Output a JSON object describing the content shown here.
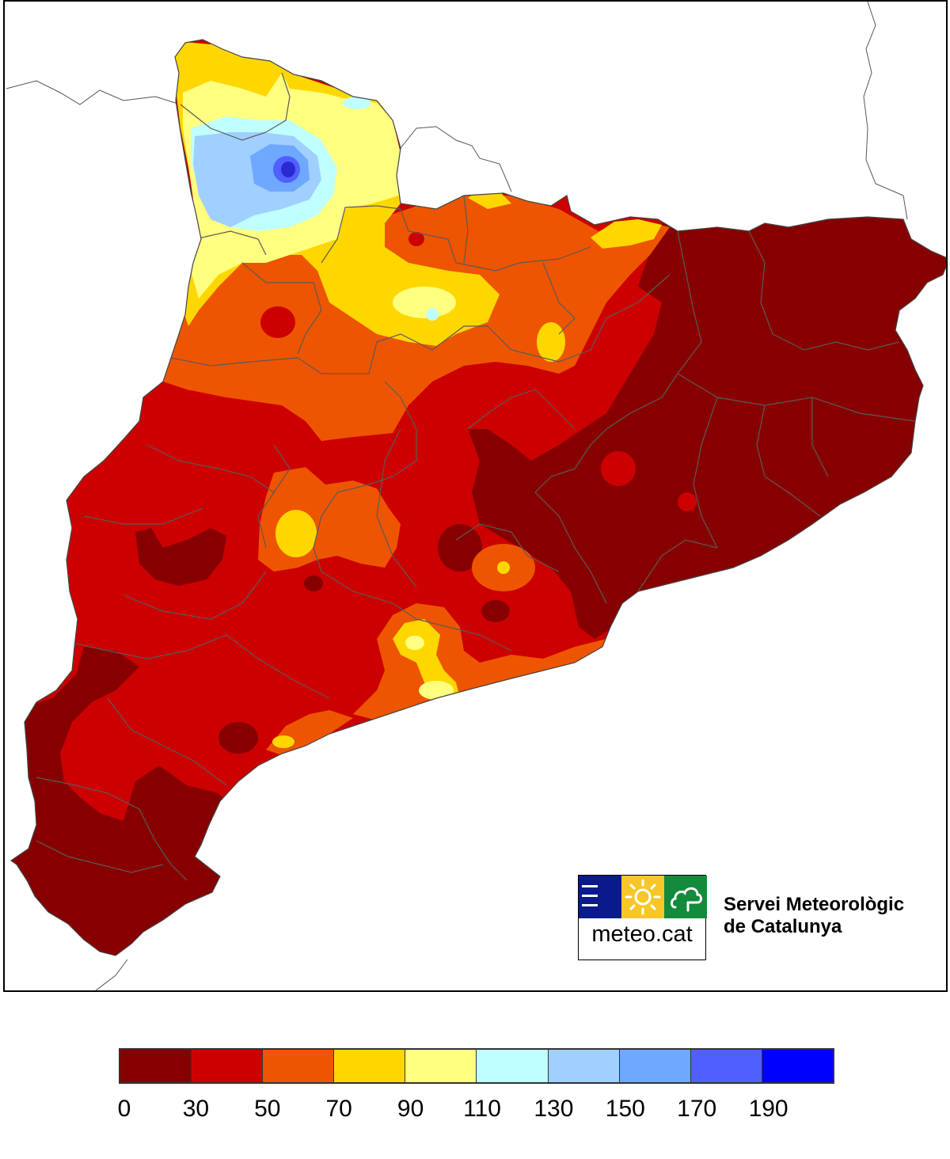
{
  "organization": {
    "line1": "Servei Meteorològic",
    "line2": "de Catalunya",
    "logo_text": "meteo.cat",
    "logo_colors": {
      "blue": "#0a1a8c",
      "yellow": "#f7c72a",
      "green": "#138a3c"
    },
    "logo_icons": [
      "menu-lines-icon",
      "sun-icon",
      "cloud-tree-icon"
    ]
  },
  "legend": {
    "colors": [
      "#870000",
      "#cc0000",
      "#ee5500",
      "#ffd700",
      "#ffff80",
      "#c0ffff",
      "#a0d0ff",
      "#6fa8ff",
      "#5060ff",
      "#0000ff"
    ],
    "labels": [
      "0",
      "30",
      "50",
      "70",
      "90",
      "110",
      "130",
      "150",
      "170",
      "190"
    ]
  },
  "map": {
    "region": "Catalunya",
    "zone_colors": {
      "0-30": "#870000",
      "30-50": "#cc0000",
      "50-70": "#ee5500",
      "70-90": "#ffd700",
      "90-110": "#ffff80",
      "110-130": "#c0ffff",
      "130-150": "#a0d0ff",
      "150-170": "#6fa8ff",
      "170-190": "#5060ff"
    }
  }
}
